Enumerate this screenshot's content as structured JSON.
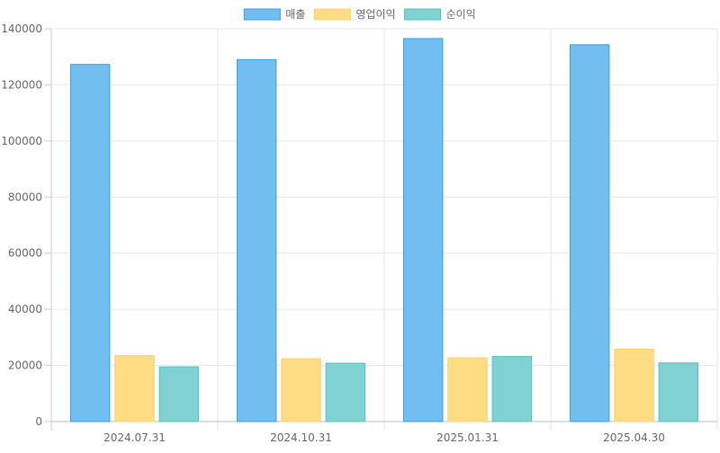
{
  "chart_data": {
    "type": "bar",
    "categories": [
      "2024.07.31",
      "2024.10.31",
      "2025.01.31",
      "2025.04.30"
    ],
    "series": [
      {
        "name": "매출",
        "values": [
          127300,
          129000,
          136500,
          134300
        ],
        "fill": "#72bef0",
        "stroke": "#3a9ee4"
      },
      {
        "name": "영업이익",
        "values": [
          23500,
          22400,
          22700,
          25800
        ],
        "fill": "#fedc84",
        "stroke": "#f8d16e"
      },
      {
        "name": "순이익",
        "values": [
          19500,
          20800,
          23200,
          20900
        ],
        "fill": "#80d2d2",
        "stroke": "#52c3c3"
      }
    ],
    "ylim": [
      0,
      140000
    ],
    "yticks": [
      "0",
      "20000",
      "40000",
      "60000",
      "80000",
      "100000",
      "120000",
      "140000"
    ],
    "grid": true,
    "legend_position": "top"
  }
}
